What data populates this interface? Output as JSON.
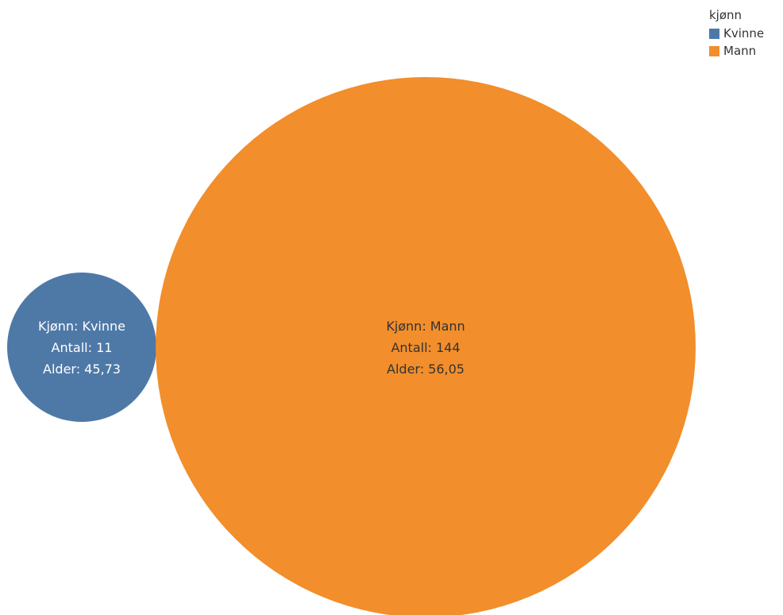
{
  "chart_data": {
    "type": "bubble",
    "legend": {
      "title": "kjønn",
      "placement": "top-right",
      "items": [
        {
          "label": "Kvinne",
          "color": "#4e79a7"
        },
        {
          "label": "Mann",
          "color": "#f28e2b"
        }
      ]
    },
    "bubbles": [
      {
        "category": "Kvinne",
        "count": 11,
        "age": 45.73,
        "color": "#4e79a7",
        "text_color": "#ffffff",
        "label_lines": [
          "Kjønn: Kvinne",
          "Antall: 11",
          "Alder: 45,73"
        ]
      },
      {
        "category": "Mann",
        "count": 144,
        "age": 56.05,
        "color": "#f28e2b",
        "text_color": "#333333",
        "label_lines": [
          "Kjønn: Mann",
          "Antall: 144",
          "Alder: 56,05"
        ]
      }
    ]
  }
}
